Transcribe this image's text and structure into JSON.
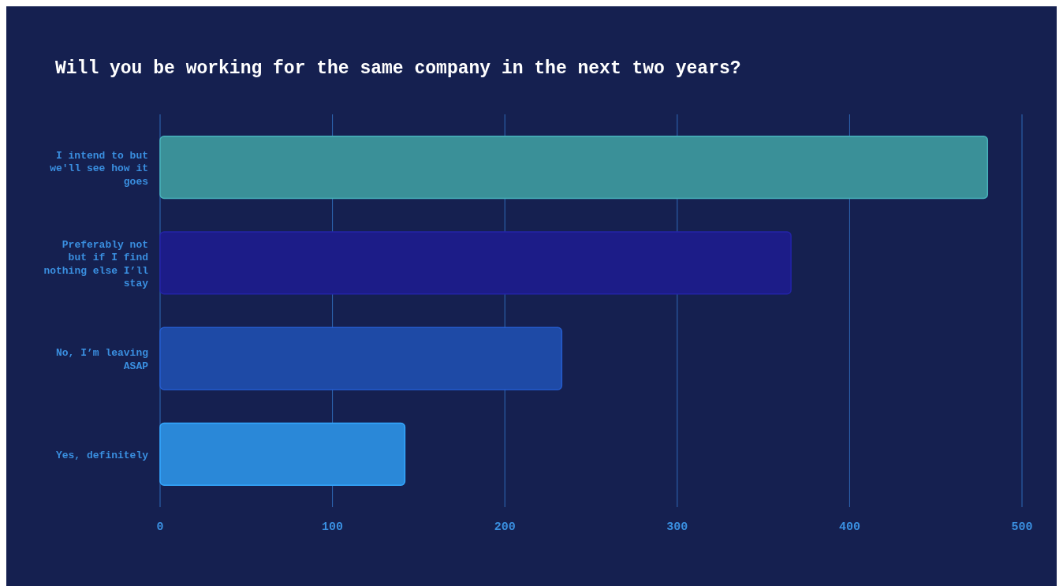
{
  "chart_data": {
    "type": "bar",
    "orientation": "horizontal",
    "title": "Will you be working for the same company in the next two years?",
    "categories": [
      "I intend to but we'll see how it goes",
      "Preferably not but if I find nothing else I’ll stay",
      "No, I’m leaving ASAP",
      "Yes, definitely"
    ],
    "values": [
      480,
      366,
      233,
      142
    ],
    "colors": [
      "#3a9098",
      "#1c1c88",
      "#1e4aa6",
      "#2a88d8"
    ],
    "xlim": [
      0,
      500
    ],
    "xticks": [
      0,
      100,
      200,
      300,
      400,
      500
    ],
    "grid": "x"
  }
}
